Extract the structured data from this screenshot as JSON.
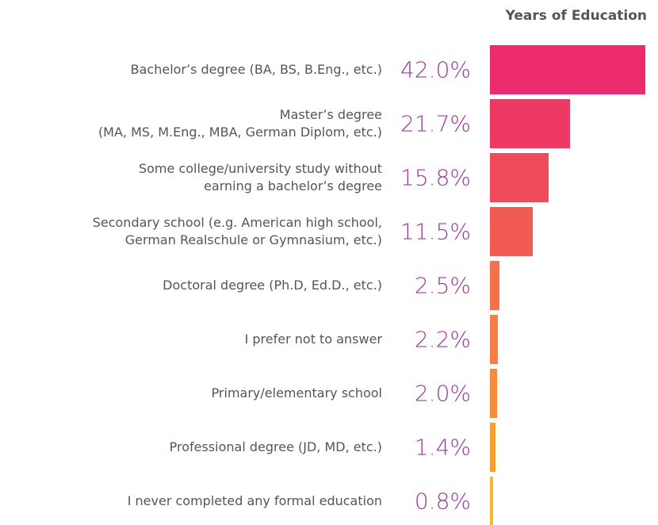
{
  "chart_data": {
    "type": "bar",
    "orientation": "horizontal",
    "title": "Years of Education",
    "categories": [
      "Bachelor’s degree (BA, BS, B.Eng., etc.)",
      "Master’s degree\n(MA, MS, M.Eng., MBA, German Diplom, etc.)",
      "Some college/university study without\nearning a bachelor’s degree",
      "Secondary school (e.g. American high school,\nGerman Realschule or Gymnasium, etc.)",
      "Doctoral degree (Ph.D, Ed.D., etc.)",
      "I prefer not to answer",
      "Primary/elementary school",
      "Professional degree (JD, MD, etc.)",
      "I never completed any formal education"
    ],
    "values": [
      42.0,
      21.7,
      15.8,
      11.5,
      2.5,
      2.2,
      2.0,
      1.4,
      0.8
    ],
    "value_labels": [
      "42.0%",
      "21.7%",
      "15.8%",
      "11.5%",
      "2.5%",
      "2.2%",
      "2.0%",
      "1.4%",
      "0.8%"
    ],
    "colors": [
      "#ec2a6e",
      "#ee3a62",
      "#ef4a5a",
      "#f15b52",
      "#f2724a",
      "#f47e44",
      "#f58c3c",
      "#f6a033",
      "#f9b82c"
    ]
  }
}
